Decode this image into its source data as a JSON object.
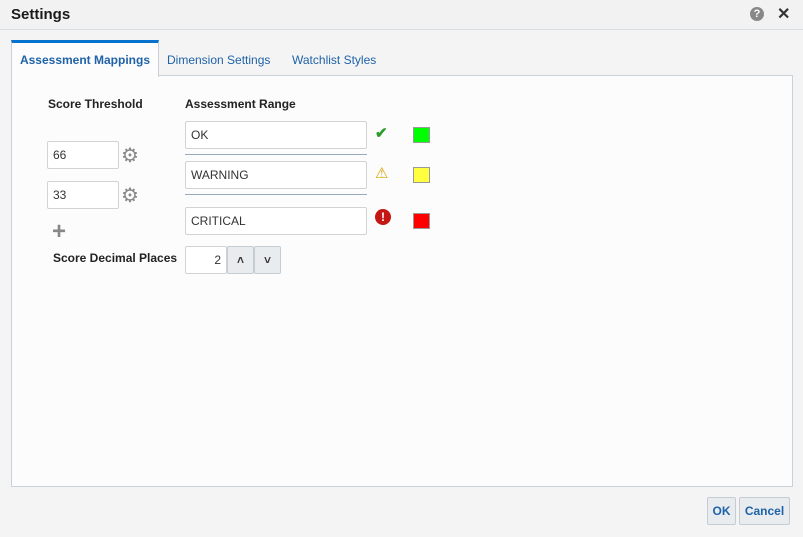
{
  "dialog": {
    "title": "Settings"
  },
  "tabs": [
    {
      "label": "Assessment Mappings",
      "active": true
    },
    {
      "label": "Dimension Settings"
    },
    {
      "label": "Watchlist Styles"
    }
  ],
  "main": {
    "score_threshold_label": "Score Threshold",
    "assessment_range_label": "Assessment Range",
    "thresholds": [
      "66",
      "33"
    ],
    "ranges": [
      {
        "label": "OK",
        "icon": "check-icon",
        "color": "#00ff00"
      },
      {
        "label": "WARNING",
        "icon": "warning-icon",
        "color": "#ffff40"
      },
      {
        "label": "CRITICAL",
        "icon": "error-icon",
        "color": "#ff0000"
      }
    ],
    "decimal_label": "Score Decimal Places",
    "decimal_value": "2"
  },
  "footer": {
    "ok": "OK",
    "cancel": "Cancel"
  }
}
